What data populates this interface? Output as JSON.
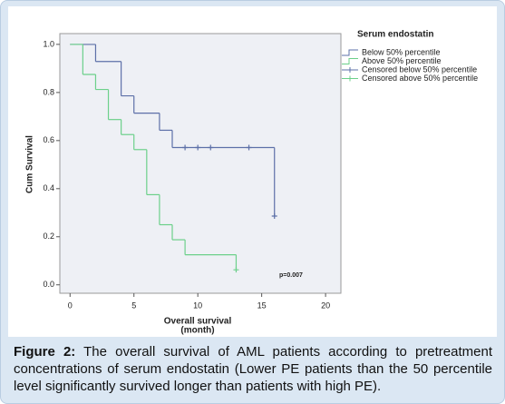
{
  "chart_data": {
    "type": "km",
    "ylabel": "Cum Survival",
    "xlabel": [
      "Overall survival",
      "(month)"
    ],
    "legend_title": "Serum endostatin",
    "annotation": "p=0.007",
    "xlim": [
      -0.8,
      21.2
    ],
    "ylim": [
      -0.035,
      1.045
    ],
    "xticks": [
      0,
      5,
      10,
      15,
      20
    ],
    "yticks": [
      {
        "value": 0,
        "label": "0.0"
      },
      0.2,
      0.4,
      0.6,
      0.8,
      {
        "value": 1,
        "label": "1.0"
      }
    ],
    "series": [
      {
        "name": "Below 50% percentile",
        "color": "#5d70a8",
        "style": "step",
        "x": [
          0,
          2,
          4,
          5,
          7,
          8,
          16
        ],
        "values": [
          1,
          0.929,
          0.786,
          0.714,
          0.643,
          0.571,
          0.286
        ]
      },
      {
        "name": "Above 50% percentile",
        "color": "#6cd08a",
        "style": "step",
        "x": [
          0,
          1,
          2,
          3,
          4,
          5,
          6,
          7,
          8,
          9,
          13
        ],
        "values": [
          1,
          0.875,
          0.8125,
          0.6875,
          0.625,
          0.5625,
          0.375,
          0.25,
          0.1875,
          0.125,
          0.0625
        ]
      },
      {
        "name": "Censored below 50% percentile",
        "color": "#5d70a8",
        "style": "censor",
        "x": [
          9,
          10,
          11,
          14,
          16
        ],
        "values": [
          0.571,
          0.571,
          0.571,
          0.571,
          0.286
        ]
      },
      {
        "name": "Censored above 50% percentile",
        "color": "#6cd08a",
        "style": "censor",
        "x": [
          13
        ],
        "values": [
          0.0625
        ]
      }
    ]
  },
  "caption": {
    "label": "Figure 2:",
    "text": "The overall survival of AML patients according to pretreatment concentrations of serum endostatin (Lower PE patients than the 50 percentile level significantly survived longer than patients with high PE)."
  }
}
